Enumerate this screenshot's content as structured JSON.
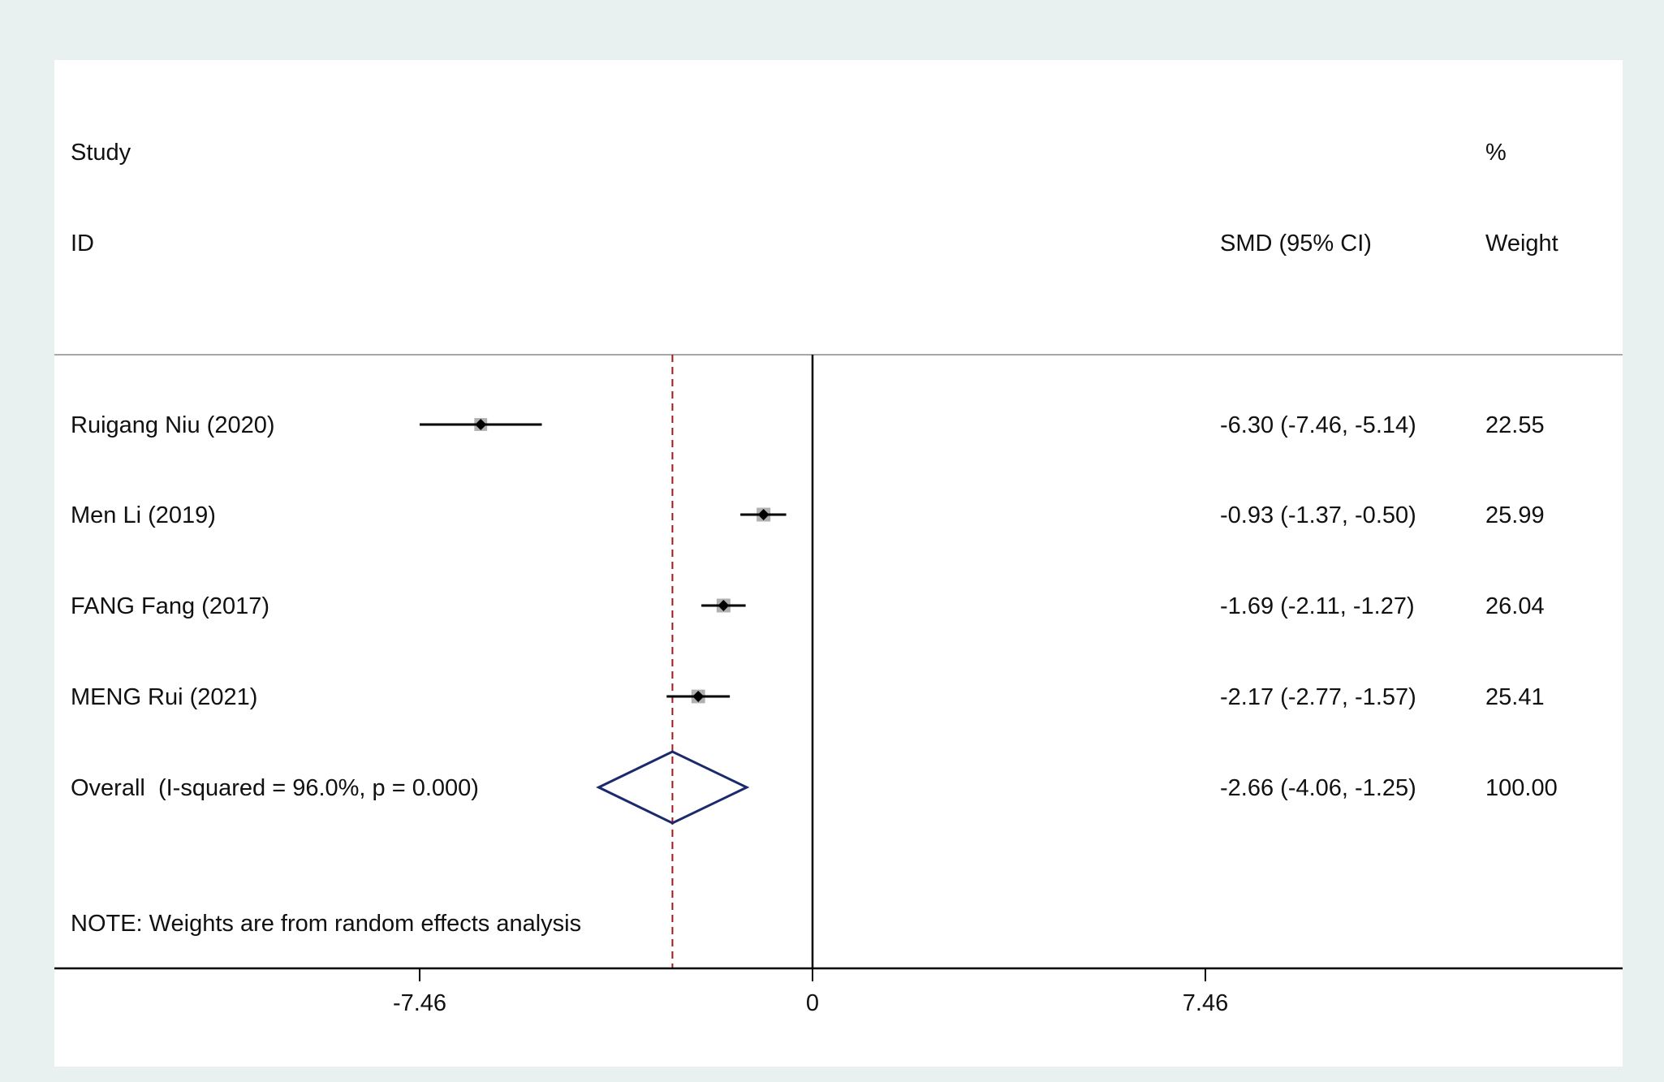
{
  "chart_data": {
    "type": "forest",
    "headers": {
      "study_line1": "Study",
      "study_line2": "ID",
      "effect_label": "SMD (95% CI)",
      "weight_line1": "%",
      "weight_line2": "Weight"
    },
    "studies": [
      {
        "label": "Ruigang Niu (2020)",
        "estimate": -6.3,
        "ci_low": -7.46,
        "ci_high": -5.14,
        "ci_text": "-6.30 (-7.46, -5.14)",
        "weight": 22.55,
        "weight_text": "22.55"
      },
      {
        "label": "Men Li (2019)",
        "estimate": -0.93,
        "ci_low": -1.37,
        "ci_high": -0.5,
        "ci_text": "-0.93 (-1.37, -0.50)",
        "weight": 25.99,
        "weight_text": "25.99"
      },
      {
        "label": "FANG Fang (2017)",
        "estimate": -1.69,
        "ci_low": -2.11,
        "ci_high": -1.27,
        "ci_text": "-1.69 (-2.11, -1.27)",
        "weight": 26.04,
        "weight_text": "26.04"
      },
      {
        "label": "MENG Rui (2021)",
        "estimate": -2.17,
        "ci_low": -2.77,
        "ci_high": -1.57,
        "ci_text": "-2.17 (-2.77, -1.57)",
        "weight": 25.41,
        "weight_text": "25.41"
      }
    ],
    "overall": {
      "label": "Overall  (I-squared = 96.0%, p = 0.000)",
      "estimate": -2.66,
      "ci_low": -4.06,
      "ci_high": -1.25,
      "ci_text": "-2.66 (-4.06, -1.25)",
      "weight_text": "100.00"
    },
    "note": "NOTE: Weights are from random effects analysis",
    "x_ticks": [
      {
        "value": -7.46,
        "label": "-7.46"
      },
      {
        "value": 0,
        "label": "0"
      },
      {
        "value": 7.46,
        "label": "7.46"
      }
    ],
    "colors": {
      "background": "#e8f0f0",
      "panel": "#ffffff",
      "marker": "#000000",
      "weight_box": "#b0b0b0",
      "overall_diamond": "#1a2a6c",
      "overall_line": "#a01818"
    }
  }
}
